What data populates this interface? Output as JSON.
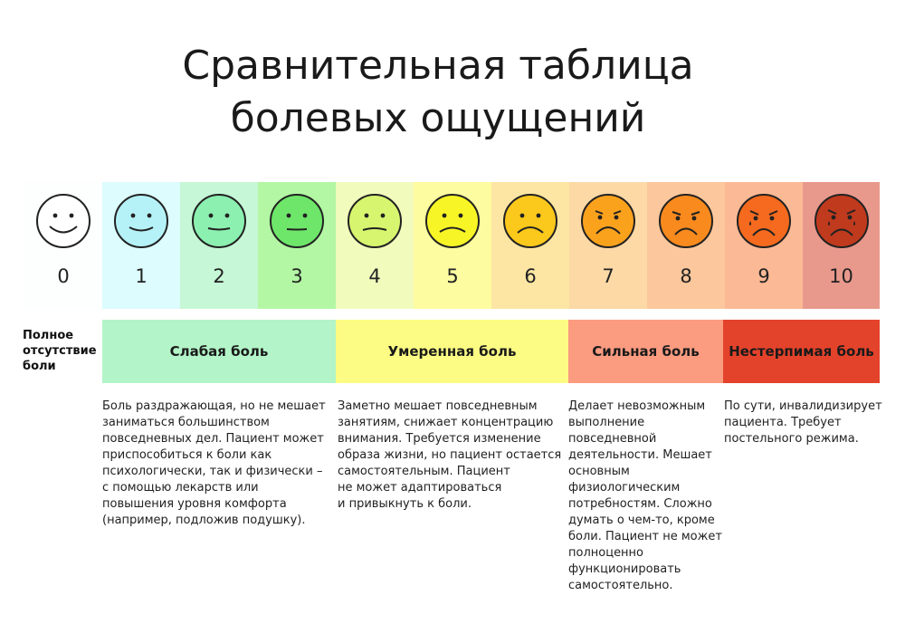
{
  "title": {
    "line1": "Сравнительная таблица",
    "line2": "болевых ощущений"
  },
  "scale": [
    {
      "level": "0",
      "bg": "#fdfefe",
      "face": "#ffffff"
    },
    {
      "level": "1",
      "bg": "#dcfcfe",
      "face": "#b5f2f7"
    },
    {
      "level": "2",
      "bg": "#c6f7d6",
      "face": "#8cf0b0"
    },
    {
      "level": "3",
      "bg": "#b3f7a4",
      "face": "#6ee66a"
    },
    {
      "level": "4",
      "bg": "#f1fbbc",
      "face": "#d8f56f"
    },
    {
      "level": "5",
      "bg": "#fdfca0",
      "face": "#f8f526"
    },
    {
      "level": "6",
      "bg": "#fde6a3",
      "face": "#fbc81c"
    },
    {
      "level": "7",
      "bg": "#fdd9a6",
      "face": "#fba21d"
    },
    {
      "level": "8",
      "bg": "#fcc79c",
      "face": "#f98a1e"
    },
    {
      "level": "9",
      "bg": "#fbb995",
      "face": "#f56a1e"
    },
    {
      "level": "10",
      "bg": "#e8998c",
      "face": "#c03a1d"
    }
  ],
  "no_pain_label": {
    "line1": "Полное",
    "line2": "отсутствие",
    "line3": "боли"
  },
  "bands": [
    {
      "label": "Слабая боль",
      "color": "#b3f5c8"
    },
    {
      "label": "Умеренная боль",
      "color": "#fcfc84"
    },
    {
      "label": "Сильная боль",
      "color": "#fb9b80"
    },
    {
      "label": "Нестерпимая боль",
      "color": "#e4432b"
    }
  ],
  "descriptions": {
    "weak": [
      "Боль раздражающая, но не мешает",
      "заниматься большинством",
      "повседневных дел. Пациент может",
      "приспособиться к боли как",
      "психологически, так и физически –",
      "с помощью лекарств или",
      "повышения уровня комфорта",
      "(например, подложив подушку)."
    ],
    "moderate": [
      "Заметно мешает повседневным",
      "занятиям, снижает концентрацию",
      "внимания. Требуется изменение",
      "образа жизни, но пациент остается",
      "самостоятельным. Пациент",
      "не может адаптироваться",
      "и привыкнуть к боли."
    ],
    "severe": [
      "Делает невозможным",
      "выполнение",
      "повседневной",
      "деятельности. Мешает",
      "основным",
      "физиологическим",
      "потребностям. Сложно",
      "думать о чем-то, кроме",
      "боли. Пациент не может",
      "полноценно",
      "функционировать",
      "самостоятельно."
    ],
    "unbearable": [
      "По сути, инвалидизирует",
      "пациента. Требует",
      "постельного режима."
    ]
  }
}
